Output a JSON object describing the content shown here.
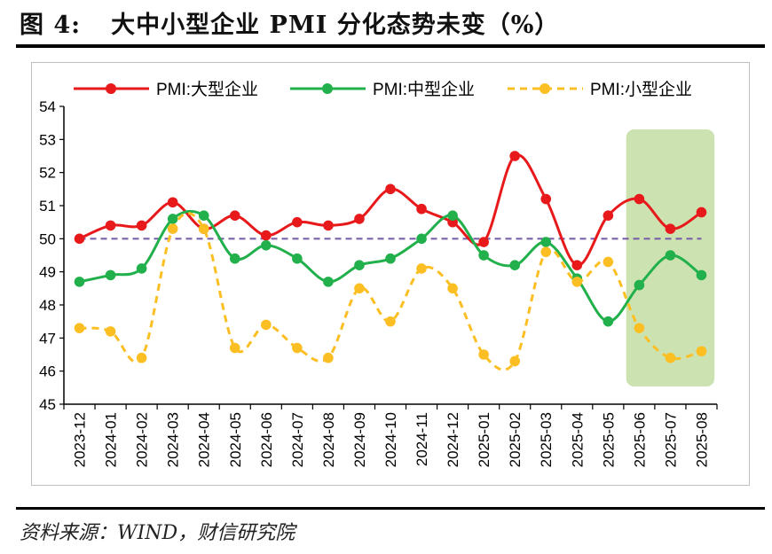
{
  "header": {
    "figure_number": "图 4:",
    "figure_title": "大中小型企业 PMI 分化态势未变（%）"
  },
  "footer": {
    "source": "资料来源：WIND，财信研究院"
  },
  "chart_data": {
    "type": "line",
    "title": "大中小型企业 PMI 分化态势未变（%）",
    "xlabel": "",
    "ylabel": "",
    "ylim": [
      45,
      54
    ],
    "yticks": [
      "45",
      "46",
      "47",
      "48",
      "49",
      "50",
      "51",
      "52",
      "53",
      "54"
    ],
    "categories": [
      "2023-12",
      "2024-01",
      "2024-02",
      "2024-03",
      "2024-04",
      "2024-05",
      "2024-06",
      "2024-07",
      "2024-08",
      "2024-09",
      "2024-10",
      "2024-11",
      "2024-12",
      "2025-01",
      "2025-02",
      "2025-03",
      "2025-04",
      "2025-05",
      "2025-06",
      "2025-07",
      "2025-08"
    ],
    "legend_position": "top",
    "series": [
      {
        "name": "PMI:大型企业",
        "color": "#e8191b",
        "style": "solid",
        "values": [
          50.0,
          50.4,
          50.4,
          51.1,
          50.3,
          50.7,
          50.1,
          50.5,
          50.4,
          50.6,
          51.5,
          50.9,
          50.5,
          49.9,
          52.5,
          51.2,
          49.2,
          50.7,
          51.2,
          50.3,
          50.8
        ]
      },
      {
        "name": "PMI:中型企业",
        "color": "#21b04b",
        "style": "solid",
        "values": [
          48.7,
          48.9,
          49.1,
          50.6,
          50.7,
          49.4,
          49.8,
          49.4,
          48.7,
          49.2,
          49.4,
          50.0,
          50.7,
          49.5,
          49.2,
          49.9,
          48.8,
          47.5,
          48.6,
          49.5,
          48.9
        ]
      },
      {
        "name": "PMI:小型企业",
        "color": "#fbbf23",
        "style": "dashed",
        "values": [
          47.3,
          47.2,
          46.4,
          50.3,
          50.3,
          46.7,
          47.4,
          46.7,
          46.4,
          48.5,
          47.5,
          49.1,
          48.5,
          46.5,
          46.3,
          49.6,
          48.7,
          49.3,
          47.3,
          46.4,
          46.6
        ]
      }
    ],
    "reference_line": {
      "value": 50,
      "color": "#7a60a8",
      "style": "dashed"
    },
    "highlight": {
      "from": "2025-06",
      "to": "2025-08",
      "color": "#c6e0a8"
    }
  }
}
